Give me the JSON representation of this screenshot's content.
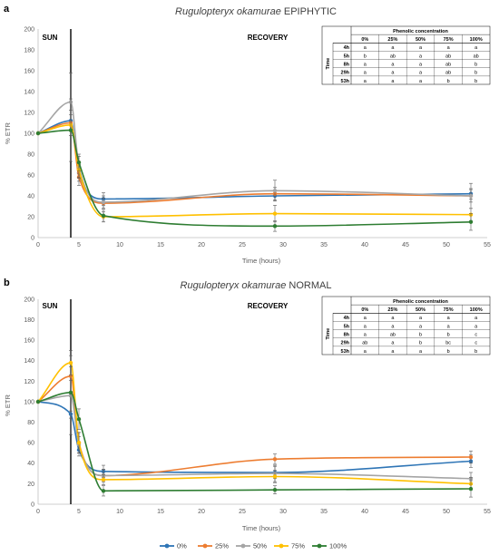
{
  "panels": [
    {
      "letter": "a",
      "title_italic": "Rugulopteryx okamurae",
      "title_rest": " EPIPHYTIC",
      "phase_left": "SUN",
      "phase_right": "RECOVERY",
      "table": {
        "header": "Phenolic concentration",
        "row_label": "Time",
        "columns": [
          "0%",
          "25%",
          "50%",
          "75%",
          "100%"
        ],
        "rows": [
          {
            "time": "4h",
            "cells": [
              "a",
              "a",
              "a",
              "a",
              "a"
            ]
          },
          {
            "time": "5h",
            "cells": [
              "b",
              "ab",
              "a",
              "ab",
              "ab"
            ]
          },
          {
            "time": "8h",
            "cells": [
              "a",
              "a",
              "a",
              "ab",
              "b"
            ]
          },
          {
            "time": "29h",
            "cells": [
              "a",
              "a",
              "a",
              "ab",
              "b"
            ]
          },
          {
            "time": "53h",
            "cells": [
              "a",
              "a",
              "a",
              "b",
              "b"
            ]
          }
        ]
      }
    },
    {
      "letter": "b",
      "title_italic": "Rugulopteryx okamurae",
      "title_rest": " NORMAL",
      "phase_left": "SUN",
      "phase_right": "RECOVERY",
      "table": {
        "header": "Phenolic concentration",
        "row_label": "Time",
        "columns": [
          "0%",
          "25%",
          "50%",
          "75%",
          "100%"
        ],
        "rows": [
          {
            "time": "4h",
            "cells": [
              "a",
              "a",
              "a",
              "a",
              "a"
            ]
          },
          {
            "time": "5h",
            "cells": [
              "a",
              "a",
              "a",
              "a",
              "a"
            ]
          },
          {
            "time": "8h",
            "cells": [
              "a",
              "ab",
              "b",
              "b",
              "c"
            ]
          },
          {
            "time": "29h",
            "cells": [
              "ab",
              "a",
              "b",
              "bc",
              "c"
            ]
          },
          {
            "time": "53h",
            "cells": [
              "a",
              "a",
              "a",
              "b",
              "b"
            ]
          }
        ]
      }
    }
  ],
  "legend": [
    {
      "name": "0%",
      "color": "#2e75b6"
    },
    {
      "name": "25%",
      "color": "#ed7d31"
    },
    {
      "name": "50%",
      "color": "#a5a5a5"
    },
    {
      "name": "75%",
      "color": "#ffc000"
    },
    {
      "name": "100%",
      "color": "#2e7d32"
    }
  ],
  "chart_data": [
    {
      "type": "line",
      "title": "Rugulopteryx okamurae EPIPHYTIC",
      "xlabel": "Time (hours)",
      "ylabel": "% ETR",
      "xlim": [
        0,
        55
      ],
      "ylim": [
        0,
        200
      ],
      "xticks": [
        0,
        5,
        10,
        15,
        20,
        25,
        30,
        35,
        40,
        45,
        50,
        55
      ],
      "yticks": [
        0,
        20,
        40,
        60,
        80,
        100,
        120,
        140,
        160,
        180,
        200
      ],
      "sun_end": 4,
      "grid": false,
      "legend_position": "bottom",
      "x": [
        0,
        4,
        5,
        8,
        29,
        53
      ],
      "series": [
        {
          "name": "0%",
          "color": "#2e75b6",
          "values": [
            100,
            112,
            62,
            37,
            40,
            42
          ],
          "errors": [
            0,
            10,
            8,
            6,
            5,
            5
          ]
        },
        {
          "name": "25%",
          "color": "#ed7d31",
          "values": [
            100,
            110,
            58,
            33,
            42,
            40
          ],
          "errors": [
            0,
            12,
            8,
            5,
            6,
            6
          ]
        },
        {
          "name": "50%",
          "color": "#a5a5a5",
          "values": [
            100,
            130,
            68,
            34,
            45,
            40
          ],
          "errors": [
            0,
            28,
            10,
            6,
            10,
            12
          ]
        },
        {
          "name": "75%",
          "color": "#ffc000",
          "values": [
            100,
            108,
            65,
            20,
            23,
            22
          ],
          "errors": [
            0,
            10,
            8,
            5,
            8,
            6
          ]
        },
        {
          "name": "100%",
          "color": "#2e7d32",
          "values": [
            100,
            103,
            72,
            21,
            11,
            15
          ],
          "errors": [
            0,
            30,
            8,
            6,
            5,
            8
          ]
        }
      ]
    },
    {
      "type": "line",
      "title": "Rugulopteryx okamurae NORMAL",
      "xlabel": "Time (hours)",
      "ylabel": "% ETR",
      "xlim": [
        0,
        55
      ],
      "ylim": [
        0,
        200
      ],
      "xticks": [
        0,
        5,
        10,
        15,
        20,
        25,
        30,
        35,
        40,
        45,
        50,
        55
      ],
      "yticks": [
        0,
        20,
        40,
        60,
        80,
        100,
        120,
        140,
        160,
        180,
        200
      ],
      "sun_end": 4,
      "grid": false,
      "legend_position": "bottom",
      "x": [
        0,
        4,
        5,
        8,
        29,
        53
      ],
      "series": [
        {
          "name": "0%",
          "color": "#2e75b6",
          "values": [
            100,
            88,
            53,
            32,
            31,
            42
          ],
          "errors": [
            0,
            20,
            6,
            6,
            6,
            6
          ]
        },
        {
          "name": "25%",
          "color": "#ed7d31",
          "values": [
            100,
            125,
            60,
            28,
            44,
            46
          ],
          "errors": [
            0,
            20,
            10,
            6,
            5,
            6
          ]
        },
        {
          "name": "50%",
          "color": "#a5a5a5",
          "values": [
            100,
            106,
            58,
            28,
            30,
            25
          ],
          "errors": [
            0,
            15,
            8,
            6,
            8,
            6
          ]
        },
        {
          "name": "75%",
          "color": "#ffc000",
          "values": [
            100,
            138,
            60,
            24,
            27,
            20
          ],
          "errors": [
            0,
            12,
            10,
            5,
            6,
            6
          ]
        },
        {
          "name": "100%",
          "color": "#2e7d32",
          "values": [
            100,
            109,
            83,
            13,
            14,
            15
          ],
          "errors": [
            0,
            25,
            10,
            5,
            4,
            8
          ]
        }
      ]
    }
  ]
}
